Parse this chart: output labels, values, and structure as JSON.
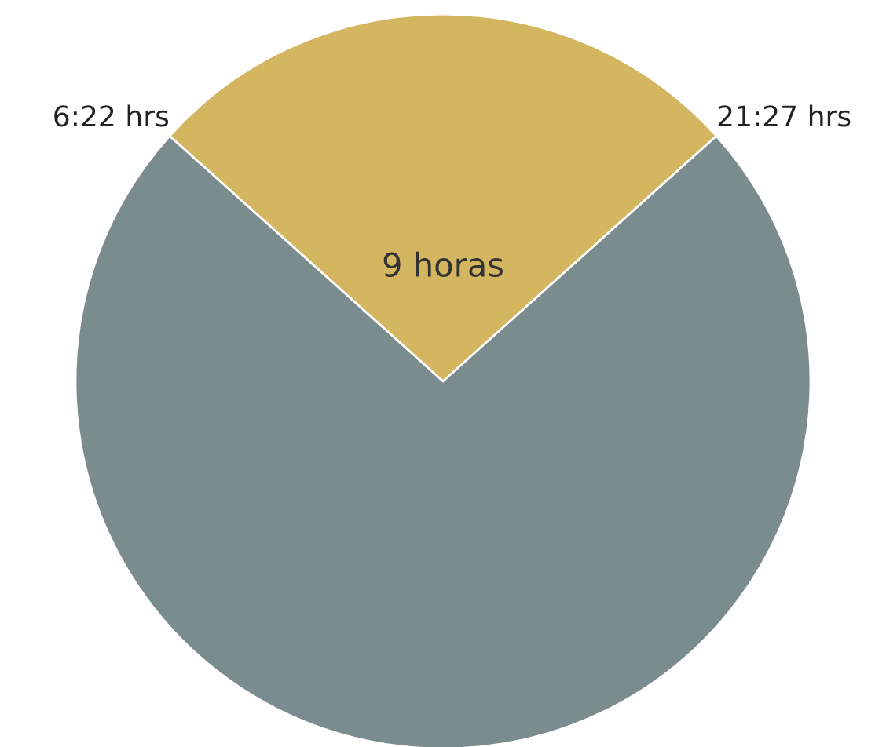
{
  "chart_data": {
    "type": "pie",
    "categories": [
      "9 horas",
      null
    ],
    "values": [
      26.7,
      73.3
    ],
    "colors": [
      "#d4b560",
      "#7a8c8e"
    ],
    "annotations": [
      "6:22 hrs",
      "21:27 hrs"
    ]
  }
}
